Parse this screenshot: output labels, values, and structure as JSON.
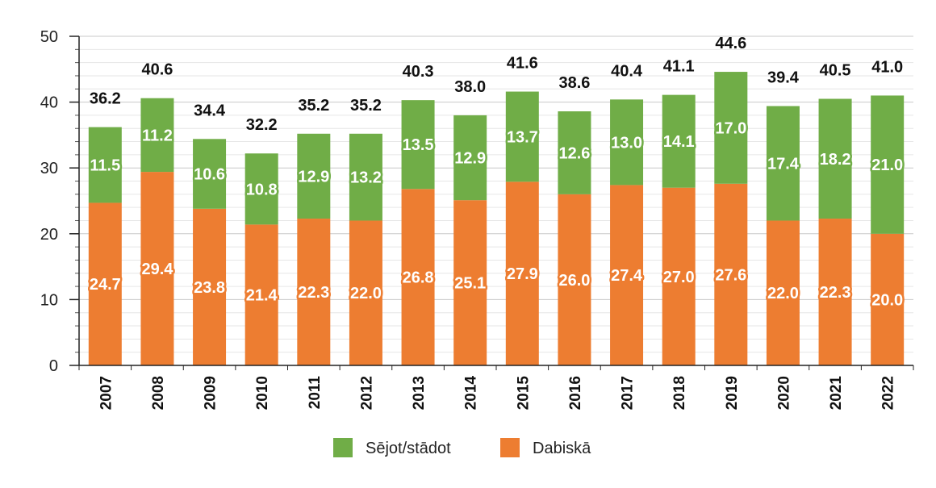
{
  "chart_data": {
    "type": "bar",
    "stacked": true,
    "categories": [
      "2007",
      "2008",
      "2009",
      "2010",
      "2011",
      "2012",
      "2013",
      "2014",
      "2015",
      "2016",
      "2017",
      "2018",
      "2019",
      "2020",
      "2021",
      "2022"
    ],
    "series": [
      {
        "name": "Dabiskā",
        "color": "#ed7d31",
        "values": [
          24.7,
          29.4,
          23.8,
          21.4,
          22.3,
          22.0,
          26.8,
          25.1,
          27.9,
          26.0,
          27.4,
          27.0,
          27.6,
          22.0,
          22.3,
          20.0
        ]
      },
      {
        "name": "Sējot/stādot",
        "color": "#70ad47",
        "values": [
          11.5,
          11.2,
          10.6,
          10.8,
          12.9,
          13.2,
          13.5,
          12.9,
          13.7,
          12.6,
          13.0,
          14.1,
          17.0,
          17.4,
          18.2,
          21.0
        ]
      }
    ],
    "totals": [
      "36.2",
      "40.6",
      "34.4",
      "32.2",
      "35.2",
      "35.2",
      "40.3",
      "38.0",
      "41.6",
      "38.6",
      "40.4",
      "41.1",
      "44.6",
      "39.4",
      "40.5",
      "41.0"
    ],
    "ylim": [
      0,
      50
    ],
    "yticks": [
      0,
      10,
      20,
      30,
      40,
      50
    ],
    "minor_grid_step": 2,
    "grid": true,
    "legend_position": "bottom",
    "legend_order": [
      "Sējot/stādot",
      "Dabiskā"
    ],
    "title": "",
    "xlabel": "",
    "ylabel": ""
  }
}
